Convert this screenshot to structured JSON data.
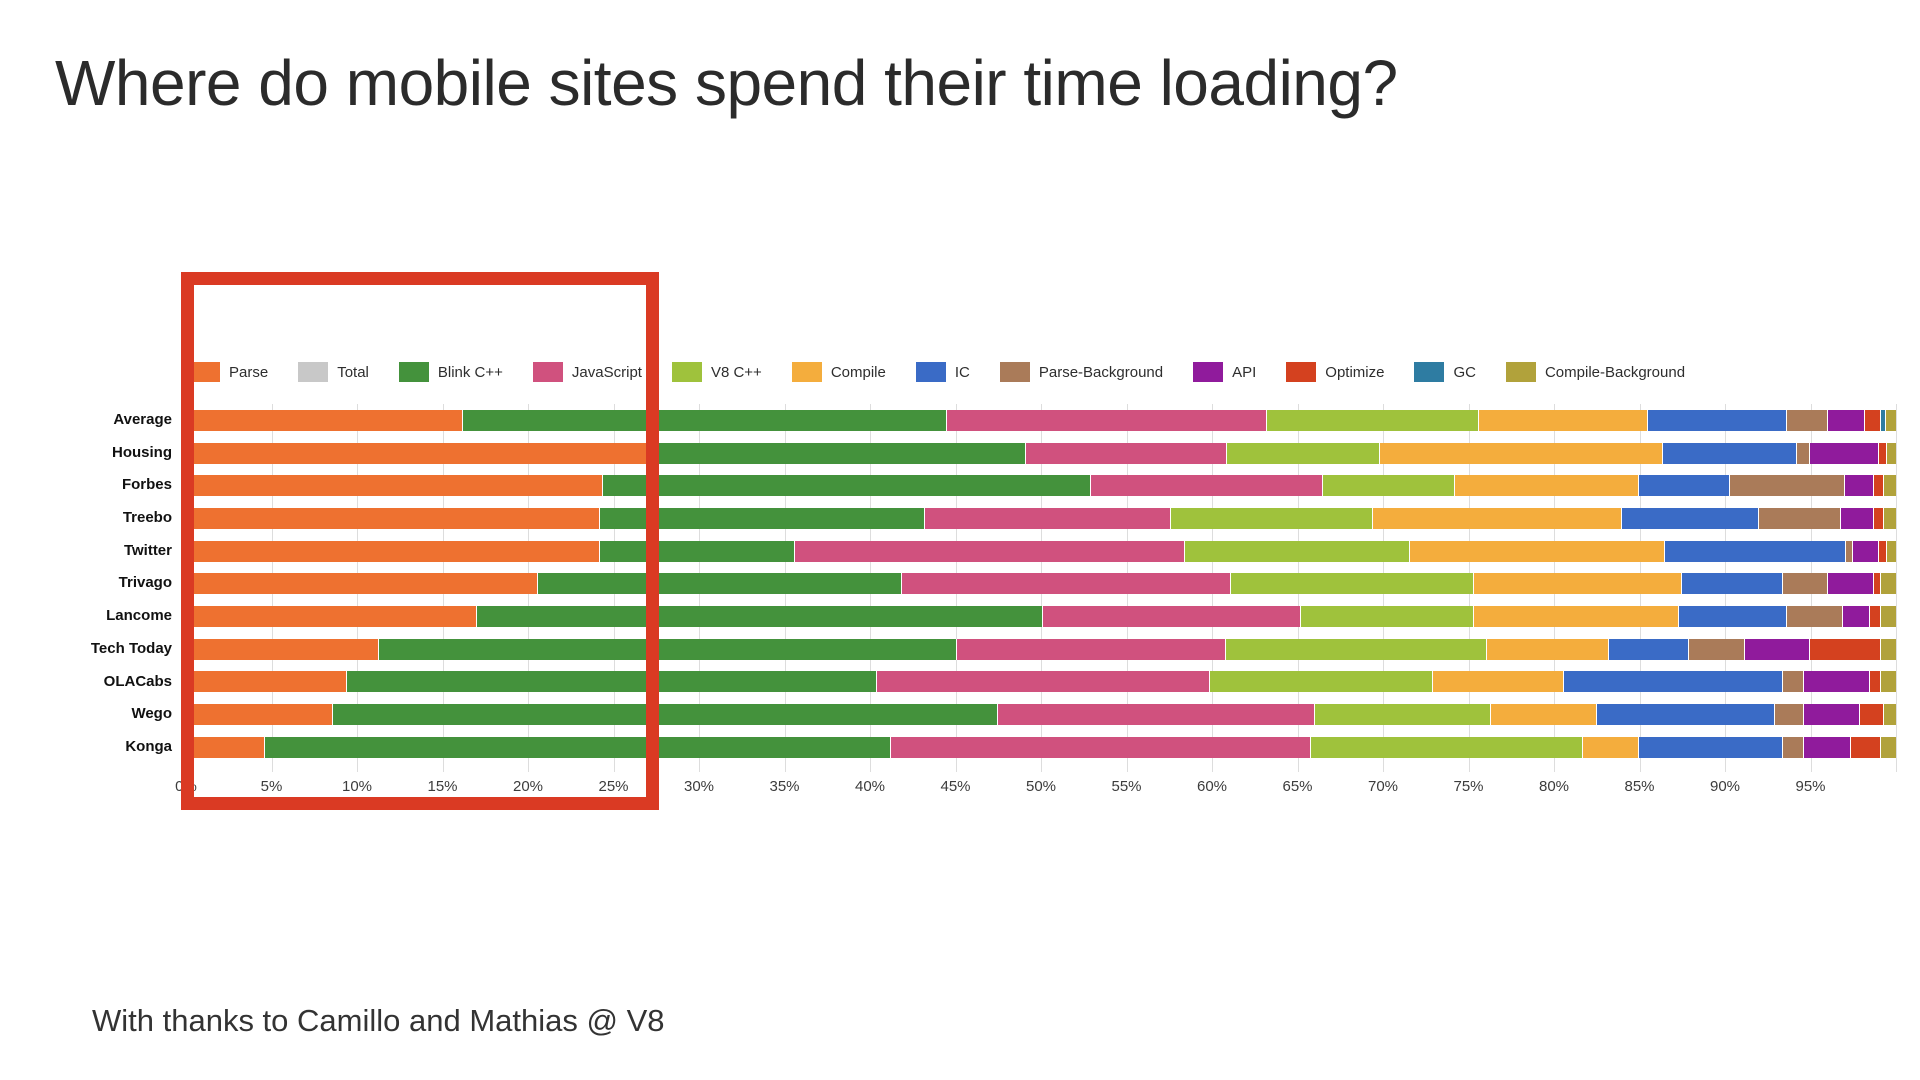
{
  "page": {
    "title": "Where do mobile sites spend their time loading?",
    "footer": "With thanks to Camillo and Mathias @ V8"
  },
  "annotation": {
    "highlight_box": {
      "color": "#da3a23",
      "x_from_pct": 0,
      "x_to_pct": 27.6
    }
  },
  "chart_data": {
    "type": "bar",
    "orientation": "horizontal",
    "stacked": true,
    "unit": "percent",
    "grid": true,
    "legend_position": "top",
    "xlim": [
      0,
      100
    ],
    "x_ticks": [
      "0%",
      "5%",
      "10%",
      "15%",
      "20%",
      "25%",
      "30%",
      "35%",
      "40%",
      "45%",
      "50%",
      "55%",
      "60%",
      "65%",
      "70%",
      "75%",
      "80%",
      "85%",
      "90%",
      "95%"
    ],
    "categories": [
      "Average",
      "Housing",
      "Forbes",
      "Treebo",
      "Twitter",
      "Trivago",
      "Lancome",
      "Tech Today",
      "OLACabs",
      "Wego",
      "Konga"
    ],
    "legend": [
      {
        "label": "Parse",
        "color": "#ee7130"
      },
      {
        "label": "Total",
        "color": "#c8c8c8"
      },
      {
        "label": "Blink C++",
        "color": "#44923c"
      },
      {
        "label": "JavaScript",
        "color": "#d0517e"
      },
      {
        "label": "V8 C++",
        "color": "#9fc23c"
      },
      {
        "label": "Compile",
        "color": "#f4ad3d"
      },
      {
        "label": "IC",
        "color": "#3a6bc6"
      },
      {
        "label": "Parse-Background",
        "color": "#aa7b59"
      },
      {
        "label": "API",
        "color": "#901b9c"
      },
      {
        "label": "Optimize",
        "color": "#d4411f"
      },
      {
        "label": "GC",
        "color": "#2e7ca2"
      },
      {
        "label": "Compile-Background",
        "color": "#b1a23b"
      }
    ],
    "series": [
      {
        "name": "Parse",
        "color": "#ee7130",
        "values": [
          16.2,
          27.5,
          24.4,
          24.2,
          24.2,
          20.6,
          17.0,
          11.3,
          9.4,
          8.6,
          4.6
        ]
      },
      {
        "name": "Blink C++",
        "color": "#44923c",
        "values": [
          28.3,
          21.6,
          28.5,
          19.0,
          11.4,
          21.3,
          33.1,
          33.8,
          31.0,
          38.9,
          36.6
        ]
      },
      {
        "name": "JavaScript",
        "color": "#d0517e",
        "values": [
          18.7,
          11.8,
          13.6,
          14.4,
          22.8,
          19.2,
          15.1,
          15.7,
          19.5,
          18.5,
          24.6
        ]
      },
      {
        "name": "V8 C++",
        "color": "#9fc23c",
        "values": [
          12.4,
          8.9,
          7.7,
          11.8,
          13.2,
          14.2,
          10.1,
          15.3,
          13.0,
          10.3,
          15.9
        ]
      },
      {
        "name": "Compile",
        "color": "#f4ad3d",
        "values": [
          9.9,
          16.6,
          10.8,
          14.6,
          14.9,
          12.2,
          12.0,
          7.1,
          7.7,
          6.2,
          3.3
        ]
      },
      {
        "name": "IC",
        "color": "#3a6bc6",
        "values": [
          8.1,
          7.8,
          5.3,
          8.0,
          10.6,
          5.9,
          6.3,
          4.7,
          12.8,
          10.4,
          8.4
        ]
      },
      {
        "name": "Parse-Background",
        "color": "#aa7b59",
        "values": [
          2.4,
          0.8,
          6.7,
          4.8,
          0.4,
          2.6,
          3.3,
          3.3,
          1.2,
          1.7,
          1.2
        ]
      },
      {
        "name": "API",
        "color": "#901b9c",
        "values": [
          2.2,
          4.0,
          1.7,
          1.9,
          1.5,
          2.7,
          1.6,
          3.8,
          3.9,
          3.3,
          2.8
        ]
      },
      {
        "name": "Optimize",
        "color": "#d4411f",
        "values": [
          0.9,
          0.5,
          0.6,
          0.6,
          0.5,
          0.4,
          0.6,
          4.1,
          0.6,
          1.4,
          1.7
        ]
      },
      {
        "name": "GC",
        "color": "#2e7ca2",
        "values": [
          0.3,
          0.0,
          0.0,
          0.0,
          0.0,
          0.0,
          0.0,
          0.0,
          0.0,
          0.0,
          0.0
        ]
      },
      {
        "name": "Compile-Background",
        "color": "#b1a23b",
        "values": [
          0.6,
          0.5,
          0.7,
          0.7,
          0.5,
          0.9,
          0.9,
          0.9,
          0.9,
          0.7,
          0.9
        ]
      }
    ]
  }
}
